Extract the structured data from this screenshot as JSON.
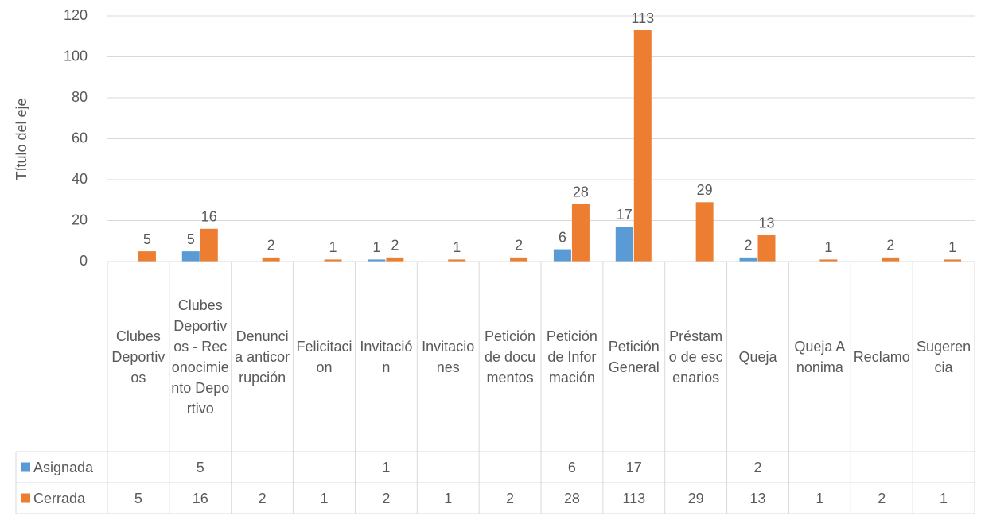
{
  "chart_data": {
    "type": "bar",
    "y_label": "Título del eje",
    "categories": [
      "Clubes Deportivos",
      "Clubes Deportivos - Reconocimiento Deportivo",
      "Denuncia anticorrupción",
      "Felicitacion",
      "Invitación",
      "Invitaciones",
      "Petición de documentos",
      "Petición de Información",
      "Petición General",
      "Préstamo de escenarios",
      "Queja",
      "Queja Anonima",
      "Reclamo",
      "Sugerencia"
    ],
    "series": [
      {
        "name": "Asignada",
        "color": "#5b9bd5",
        "values": [
          null,
          5,
          null,
          null,
          1,
          null,
          null,
          6,
          17,
          null,
          2,
          null,
          null,
          null
        ]
      },
      {
        "name": "Cerrada",
        "color": "#ed7d31",
        "values": [
          5,
          16,
          2,
          1,
          2,
          1,
          2,
          28,
          113,
          29,
          13,
          1,
          2,
          1
        ]
      }
    ],
    "ylim": [
      0,
      120
    ],
    "yticks": [
      0,
      20,
      40,
      60,
      80,
      100,
      120
    ],
    "grid": true
  }
}
